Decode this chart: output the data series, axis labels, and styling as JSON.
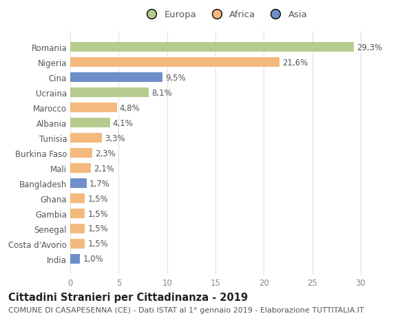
{
  "categories": [
    "Romania",
    "Nigeria",
    "Cina",
    "Ucraina",
    "Marocco",
    "Albania",
    "Tunisia",
    "Burkina Faso",
    "Mali",
    "Bangladesh",
    "Ghana",
    "Gambia",
    "Senegal",
    "Costa d'Avorio",
    "India"
  ],
  "values": [
    29.3,
    21.6,
    9.5,
    8.1,
    4.8,
    4.1,
    3.3,
    2.3,
    2.1,
    1.7,
    1.5,
    1.5,
    1.5,
    1.5,
    1.0
  ],
  "labels": [
    "29,3%",
    "21,6%",
    "9,5%",
    "8,1%",
    "4,8%",
    "4,1%",
    "3,3%",
    "2,3%",
    "2,1%",
    "1,7%",
    "1,5%",
    "1,5%",
    "1,5%",
    "1,5%",
    "1,0%"
  ],
  "colors": [
    "#b5cc8e",
    "#f4b97c",
    "#6e8fc7",
    "#b5cc8e",
    "#f4b97c",
    "#b5cc8e",
    "#f4b97c",
    "#f4b97c",
    "#f4b97c",
    "#6e8fc7",
    "#f4b97c",
    "#f4b97c",
    "#f4b97c",
    "#f4b97c",
    "#6e8fc7"
  ],
  "legend_labels": [
    "Europa",
    "Africa",
    "Asia"
  ],
  "legend_colors": [
    "#b5cc8e",
    "#f4b97c",
    "#6e8fc7"
  ],
  "xlim": [
    0,
    32
  ],
  "xticks": [
    0,
    5,
    10,
    15,
    20,
    25,
    30
  ],
  "title_main": "Cittadini Stranieri per Cittadinanza - 2019",
  "title_sub": "COMUNE DI CASAPESENNA (CE) - Dati ISTAT al 1° gennaio 2019 - Elaborazione TUTTITALIA.IT",
  "bg_color": "#ffffff",
  "grid_color": "#e0e0e0",
  "bar_height": 0.65,
  "label_fontsize": 8.5,
  "tick_fontsize": 8.5,
  "title_fontsize": 10.5,
  "subtitle_fontsize": 8,
  "legend_fontsize": 9.5
}
